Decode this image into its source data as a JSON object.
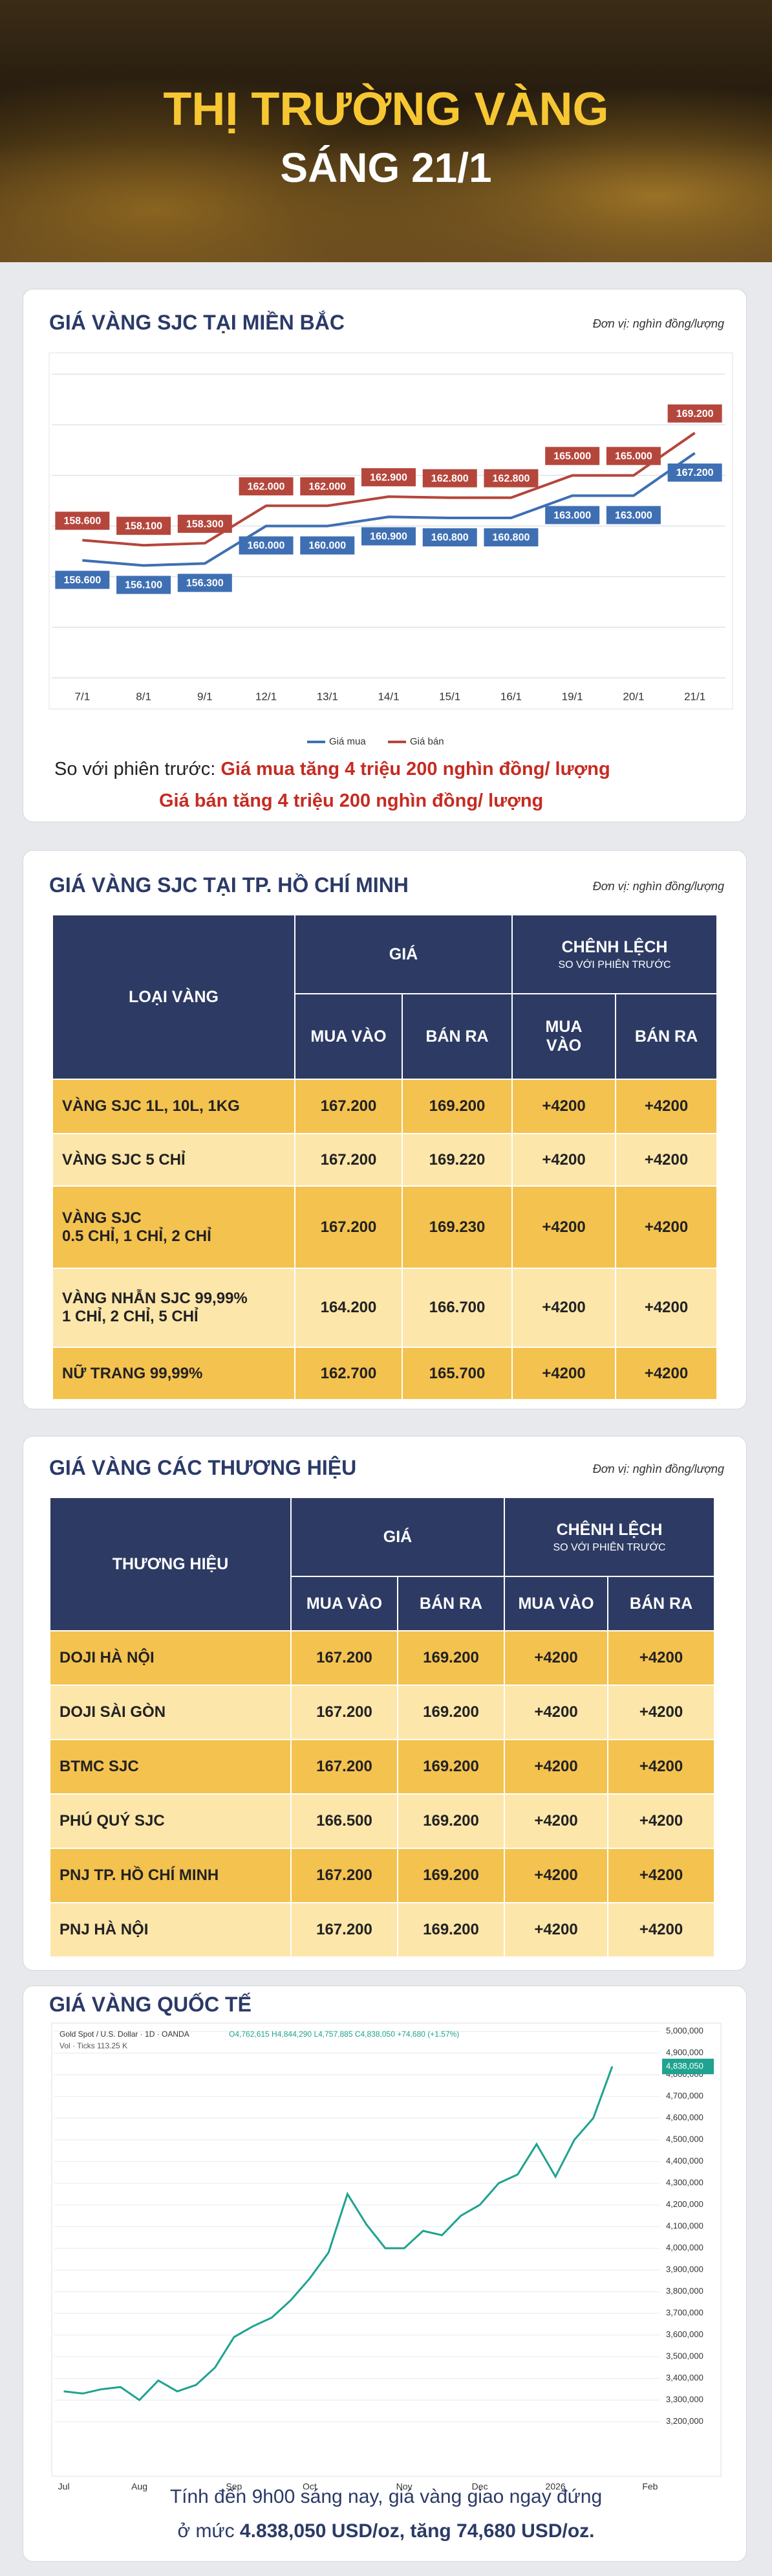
{
  "header": {
    "title": "THỊ TRƯỜNG VÀNG",
    "subtitle": "SÁNG 21/1"
  },
  "sections": [
    {
      "title": "GIÁ VÀNG SJC TẠI MIỀN BẮC",
      "unit": "Đơn vị: nghìn đồng/lượng",
      "summary": {
        "lead": "So với phiên trước: ",
        "lines": [
          "Giá mua tăng 4 triệu 200 nghìn đồng/ lượng",
          "Giá bán tăng 4 triệu 200 nghìn đồng/ lượng"
        ]
      }
    },
    {
      "title": "GIÁ VÀNG SJC TẠI TP. HỒ CHÍ MINH",
      "unit": "Đơn vị: nghìn đồng/lượng",
      "table": {
        "header": {
          "first": "LOẠI VÀNG",
          "group1": "GIÁ",
          "group2": "CHÊNH LỆCH",
          "group2_sub": "SO VỚI PHIÊN TRƯỚC",
          "cols": [
            "MUA VÀO",
            "BÁN RA",
            "MUA\nVÀO",
            "BÁN RA"
          ]
        },
        "rows": [
          [
            "VÀNG SJC 1L, 10L, 1KG",
            "167.200",
            "169.200",
            "+4200",
            "+4200"
          ],
          [
            "VÀNG SJC 5 CHỈ",
            "167.200",
            "169.220",
            "+4200",
            "+4200"
          ],
          [
            "VÀNG SJC\n0.5 CHỈ, 1 CHỈ, 2 CHỈ",
            "167.200",
            "169.230",
            "+4200",
            "+4200"
          ],
          [
            "VÀNG NHẪN SJC 99,99%\n1 CHỈ, 2 CHỈ, 5 CHỈ",
            "164.200",
            "166.700",
            "+4200",
            "+4200"
          ],
          [
            "NỮ TRANG 99,99%",
            "162.700",
            "165.700",
            "+4200",
            "+4200"
          ]
        ]
      }
    },
    {
      "title": "GIÁ VÀNG CÁC THƯƠNG HIỆU",
      "unit": "Đơn vị: nghìn đồng/lượng",
      "table": {
        "header": {
          "first": "THƯƠNG HIỆU",
          "group1": "GIÁ",
          "group2": "CHÊNH LỆCH",
          "group2_sub": "SO VỚI PHIÊN TRƯỚC",
          "cols": [
            "MUA VÀO",
            "BÁN RA",
            "MUA VÀO",
            "BÁN RA"
          ]
        },
        "rows": [
          [
            "DOJI HÀ NỘI",
            "167.200",
            "169.200",
            "+4200",
            "+4200"
          ],
          [
            "DOJI SÀI GÒN",
            "167.200",
            "169.200",
            "+4200",
            "+4200"
          ],
          [
            "BTMC SJC",
            "167.200",
            "169.200",
            "+4200",
            "+4200"
          ],
          [
            "PHÚ QUÝ SJC",
            "166.500",
            "169.200",
            "+4200",
            "+4200"
          ],
          [
            "PNJ TP. HỒ CHÍ MINH",
            "167.200",
            "169.200",
            "+4200",
            "+4200"
          ],
          [
            "PNJ HÀ NỘI",
            "167.200",
            "169.200",
            "+4200",
            "+4200"
          ]
        ]
      }
    },
    {
      "title": "GIÁ VÀNG QUỐC TẾ",
      "note": {
        "line1": "Tính đến 9h00 sáng nay, giá vàng giao ngay đứng",
        "prefix": "ở mức ",
        "bold": "4.838,050 USD/oz, tăng 74,680 USD/oz."
      }
    }
  ],
  "chart_data": [
    {
      "type": "line",
      "categories": [
        "7/1",
        "8/1",
        "9/1",
        "12/1",
        "13/1",
        "14/1",
        "15/1",
        "16/1",
        "19/1",
        "20/1",
        "21/1"
      ],
      "series": [
        {
          "name": "Giá mua",
          "color": "#3f6fb3",
          "values": [
            156600,
            156100,
            156300,
            160000,
            160000,
            160900,
            160800,
            160800,
            163000,
            163000,
            167200
          ],
          "value_labels": [
            "156.600",
            "156.100",
            "156.300",
            "160.000",
            "160.000",
            "160.900",
            "160.800",
            "160.800",
            "163.000",
            "163.000",
            "167.200"
          ]
        },
        {
          "name": "Giá bán",
          "color": "#b5463c",
          "values": [
            158600,
            158100,
            158300,
            162000,
            162000,
            162900,
            162800,
            162800,
            165000,
            165000,
            169200
          ],
          "value_labels": [
            "158.600",
            "158.100",
            "158.300",
            "162.000",
            "162.000",
            "162.900",
            "162.800",
            "162.800",
            "165.000",
            "165.000",
            "169.200"
          ]
        }
      ],
      "ylim": [
        145000,
        175000
      ],
      "yticks": [
        145000,
        150000,
        155000,
        160000,
        165000,
        170000,
        175000
      ],
      "grid": true,
      "legend": "bottom"
    },
    {
      "type": "line",
      "title": "Gold Spot / U.S. Dollar · 1D · OANDA",
      "subtitle": "O4,762,615 H4,844,290 L4,757,885 C4,838,050 +74,680 (+1.57%)",
      "annotations": [
        "Vol · Ticks 113.25 K",
        "4,838,050"
      ],
      "categories": [
        "Jul",
        null,
        null,
        null,
        "Aug",
        null,
        null,
        null,
        null,
        "Sep",
        null,
        null,
        null,
        "Oct",
        null,
        null,
        null,
        null,
        "Nov",
        null,
        null,
        null,
        "Dec",
        null,
        null,
        null,
        "2026",
        null,
        null,
        null,
        null,
        "Feb"
      ],
      "series": [
        {
          "name": "Gold Spot",
          "color": "#1fa38f",
          "values": [
            3340000,
            3330000,
            3350000,
            3360000,
            3300000,
            3390000,
            3340000,
            3370000,
            3450000,
            3590000,
            3640000,
            3680000,
            3760000,
            3860000,
            3980000,
            4250000,
            4110000,
            4000000,
            4000000,
            4080000,
            4060000,
            4150000,
            4200000,
            4300000,
            4340000,
            4480000,
            4330000,
            4500000,
            4600000,
            4838050,
            null,
            null
          ]
        }
      ],
      "ylim": [
        3020000,
        5020000
      ],
      "yticks": [
        {
          "value": 5000000,
          "label": "5,000,000"
        },
        {
          "value": 4900000,
          "label": "4,900,000"
        },
        {
          "value": 4800000,
          "label": "4,800,000"
        },
        {
          "value": 4700000,
          "label": "4,700,000"
        },
        {
          "value": 4600000,
          "label": "4,600,000"
        },
        {
          "value": 4500000,
          "label": "4,500,000"
        },
        {
          "value": 4400000,
          "label": "4,400,000"
        },
        {
          "value": 4300000,
          "label": "4,300,000"
        },
        {
          "value": 4200000,
          "label": "4,200,000"
        },
        {
          "value": 4100000,
          "label": "4,100,000"
        },
        {
          "value": 4000000,
          "label": "4,000,000"
        },
        {
          "value": 3900000,
          "label": "3,900,000"
        },
        {
          "value": 3800000,
          "label": "3,800,000"
        },
        {
          "value": 3700000,
          "label": "3,700,000"
        },
        {
          "value": 3600000,
          "label": "3,600,000"
        },
        {
          "value": 3500000,
          "label": "3,500,000"
        },
        {
          "value": 3400000,
          "label": "3,400,000"
        },
        {
          "value": 3300000,
          "label": "3,300,000"
        },
        {
          "value": 3200000,
          "label": "3,200,000"
        }
      ],
      "grid": true
    }
  ]
}
